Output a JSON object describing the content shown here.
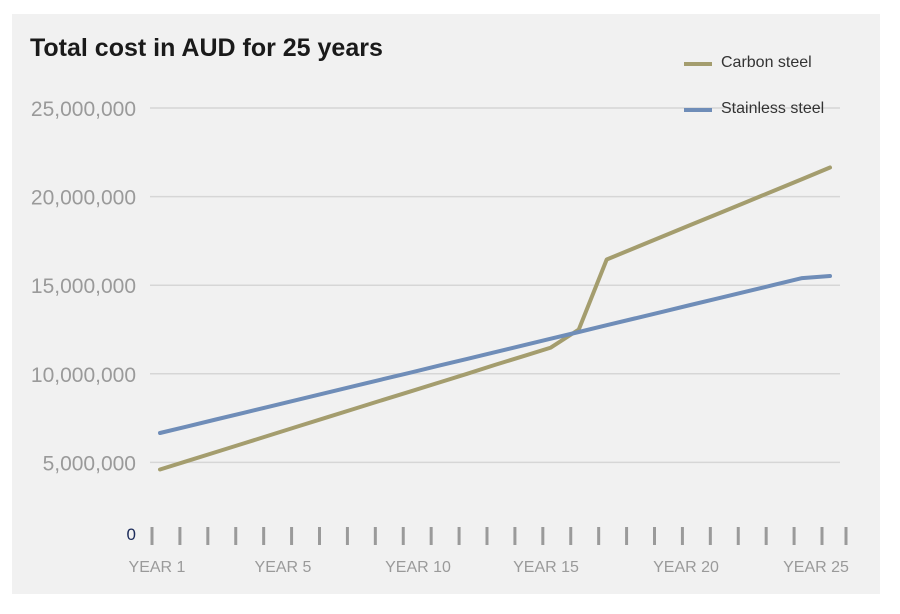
{
  "chart_data": {
    "type": "line",
    "title": "Total cost in AUD for 25 years",
    "xlabel": "",
    "ylabel": "",
    "categories": [
      "YEAR 1",
      "YEAR 2",
      "YEAR 3",
      "YEAR 4",
      "YEAR 5",
      "YEAR 6",
      "YEAR 7",
      "YEAR 8",
      "YEAR 9",
      "YEAR 10",
      "YEAR 11",
      "YEAR 12",
      "YEAR 13",
      "YEAR 14",
      "YEAR 15",
      "YEAR 16",
      "YEAR 17",
      "YEAR 18",
      "YEAR 19",
      "YEAR 20",
      "YEAR 21",
      "YEAR 22",
      "YEAR 23",
      "YEAR 24",
      "YEAR 25"
    ],
    "x_tick_labels": [
      "YEAR 1",
      "YEAR 5",
      "YEAR 10",
      "YEAR 15",
      "YEAR 20",
      "YEAR 25"
    ],
    "y_ticks": [
      0,
      5000000,
      10000000,
      15000000,
      20000000,
      25000000
    ],
    "y_tick_labels": [
      "0",
      "5,000,000",
      "10,000,000",
      "15,000,000",
      "20,000,000",
      "25,000,000"
    ],
    "ylim": [
      0,
      25000000
    ],
    "grid": true,
    "legend_position": "top-right",
    "series": [
      {
        "name": "Carbon steel",
        "color": "#a49d6e",
        "values": [
          4600000,
          5090000,
          5580000,
          6070000,
          6570000,
          7060000,
          7550000,
          8040000,
          8530000,
          9020000,
          9510000,
          10000000,
          10500000,
          10990000,
          11480000,
          12500000,
          16450000,
          17100000,
          17750000,
          18400000,
          19040000,
          19690000,
          20340000,
          20990000,
          21640000
        ]
      },
      {
        "name": "Stainless steel",
        "color": "#6f8db8",
        "values": [
          6660000,
          7040000,
          7420000,
          7800000,
          8180000,
          8560000,
          8940000,
          9320000,
          9700000,
          10080000,
          10460000,
          10840000,
          11220000,
          11600000,
          11980000,
          12360000,
          12740000,
          13120000,
          13500000,
          13880000,
          14260000,
          14640000,
          15020000,
          15400000,
          15520000
        ]
      }
    ]
  }
}
